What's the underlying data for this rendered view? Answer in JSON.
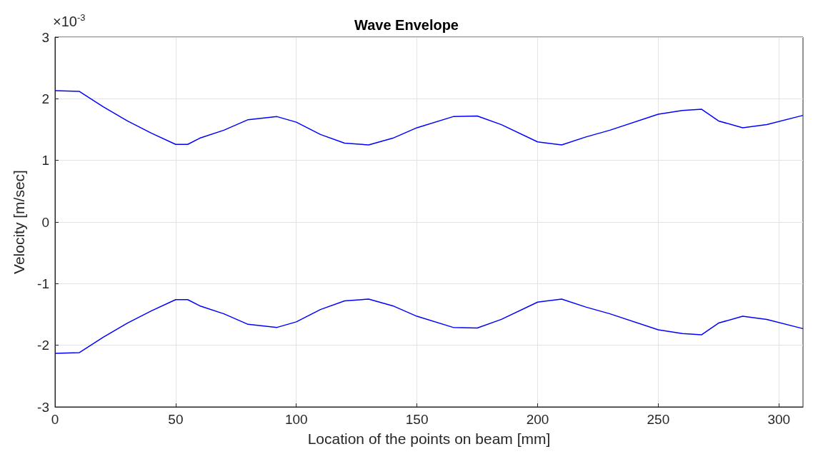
{
  "chart_data": {
    "type": "line",
    "title": "Wave Envelope",
    "xlabel": "Location of the points on beam [mm]",
    "ylabel": "Velocity [m/sec]",
    "annotations": [
      "×10$^{-3}$"
    ],
    "x": [
      0,
      10,
      20,
      30,
      40,
      50,
      55,
      60,
      70,
      80,
      92,
      100,
      110,
      120,
      130,
      140,
      150,
      165,
      175,
      185,
      200,
      210,
      220,
      230,
      250,
      260,
      268,
      275,
      285,
      295,
      310
    ],
    "series": [
      {
        "color": "#0000ff",
        "values": [
          2.13,
          2.12,
          1.87,
          1.64,
          1.44,
          1.26,
          1.26,
          1.36,
          1.49,
          1.66,
          1.71,
          1.62,
          1.42,
          1.28,
          1.25,
          1.36,
          1.53,
          1.71,
          1.72,
          1.58,
          1.3,
          1.25,
          1.38,
          1.49,
          1.75,
          1.81,
          1.83,
          1.64,
          1.53,
          1.58,
          1.73
        ]
      },
      {
        "color": "#0000ff",
        "values": [
          -2.13,
          -2.12,
          -1.87,
          -1.64,
          -1.44,
          -1.26,
          -1.26,
          -1.36,
          -1.49,
          -1.66,
          -1.71,
          -1.62,
          -1.42,
          -1.28,
          -1.25,
          -1.36,
          -1.53,
          -1.71,
          -1.72,
          -1.58,
          -1.3,
          -1.25,
          -1.38,
          -1.49,
          -1.75,
          -1.81,
          -1.83,
          -1.64,
          -1.53,
          -1.58,
          -1.73
        ]
      }
    ],
    "xlim": [
      0,
      310
    ],
    "xticks": [
      0,
      50,
      100,
      150,
      200,
      250,
      300
    ],
    "ylim": [
      -3,
      3
    ],
    "yticks": [
      -3,
      -2,
      -1,
      0,
      1,
      2,
      3
    ],
    "grid": true,
    "marker": "none",
    "line_style": "solid"
  }
}
